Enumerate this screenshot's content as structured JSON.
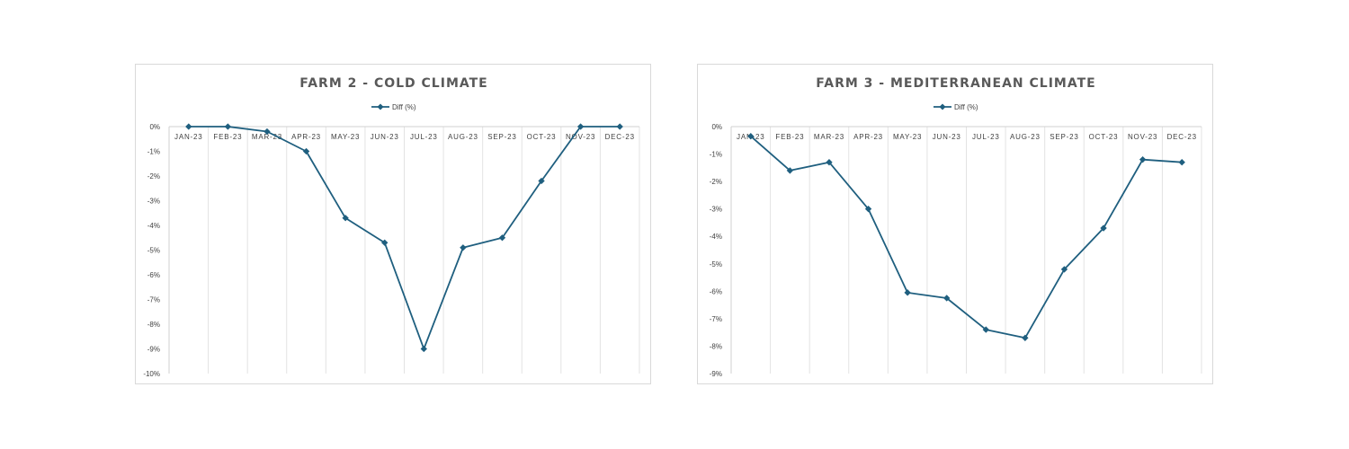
{
  "chart_data": [
    {
      "type": "line",
      "title": "FARM 2 - COLD CLIMATE",
      "categories": [
        "JAN-23",
        "FEB-23",
        "MAR-23",
        "APR-23",
        "MAY-23",
        "JUN-23",
        "JUL-23",
        "AUG-23",
        "SEP-23",
        "OCT-23",
        "NOV-23",
        "DEC-23"
      ],
      "series": [
        {
          "name": "Diff (%)",
          "color": "#1f5f7f",
          "values": [
            0,
            0,
            -0.2,
            -1,
            -3.7,
            -4.7,
            -9,
            -4.9,
            -4.5,
            -2.2,
            0,
            0
          ]
        }
      ],
      "y_ticks": [
        "0%",
        "-1%",
        "-2%",
        "-3%",
        "-4%",
        "-5%",
        "-6%",
        "-7%",
        "-8%",
        "-9%",
        "-10%"
      ],
      "ylim": [
        -10,
        0
      ],
      "legend": "top-center",
      "grid": true
    },
    {
      "type": "line",
      "title": "FARM 3 - MEDITERRANEAN CLIMATE",
      "categories": [
        "JAN-23",
        "FEB-23",
        "MAR-23",
        "APR-23",
        "MAY-23",
        "JUN-23",
        "JUL-23",
        "AUG-23",
        "SEP-23",
        "OCT-23",
        "NOV-23",
        "DEC-23"
      ],
      "series": [
        {
          "name": "Diff (%)",
          "color": "#1f5f7f",
          "values": [
            -0.35,
            -1.6,
            -1.3,
            -3,
            -6.05,
            -6.25,
            -7.4,
            -7.7,
            -5.2,
            -3.7,
            -1.2,
            -1.3
          ]
        }
      ],
      "y_ticks": [
        "0%",
        "-1%",
        "-2%",
        "-3%",
        "-4%",
        "-5%",
        "-6%",
        "-7%",
        "-8%",
        "-9%"
      ],
      "ylim": [
        -9,
        0
      ],
      "legend": "top-center",
      "grid": true
    }
  ]
}
